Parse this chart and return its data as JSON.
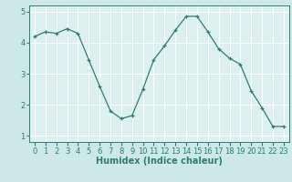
{
  "x": [
    0,
    1,
    2,
    3,
    4,
    5,
    6,
    7,
    8,
    9,
    10,
    11,
    12,
    13,
    14,
    15,
    16,
    17,
    18,
    19,
    20,
    21,
    22,
    23
  ],
  "y": [
    4.2,
    4.35,
    4.3,
    4.45,
    4.3,
    3.45,
    2.6,
    1.8,
    1.55,
    1.65,
    2.5,
    3.45,
    3.9,
    4.4,
    4.85,
    4.85,
    4.35,
    3.8,
    3.5,
    3.3,
    2.45,
    1.9,
    1.3,
    1.3
  ],
  "line_color": "#2e7d6e",
  "marker": "+",
  "marker_size": 3,
  "bg_color": "#cce8e8",
  "grid_color": "#b0d4d4",
  "plot_bg": "#ddf0f0",
  "axis_color": "#2e7d6e",
  "xlabel": "Humidex (Indice chaleur)",
  "xlabel_fontsize": 7,
  "tick_fontsize": 6,
  "ylim": [
    0.8,
    5.2
  ],
  "xlim": [
    -0.5,
    23.5
  ],
  "yticks": [
    1,
    2,
    3,
    4,
    5
  ],
  "xticks": [
    0,
    1,
    2,
    3,
    4,
    5,
    6,
    7,
    8,
    9,
    10,
    11,
    12,
    13,
    14,
    15,
    16,
    17,
    18,
    19,
    20,
    21,
    22,
    23
  ]
}
